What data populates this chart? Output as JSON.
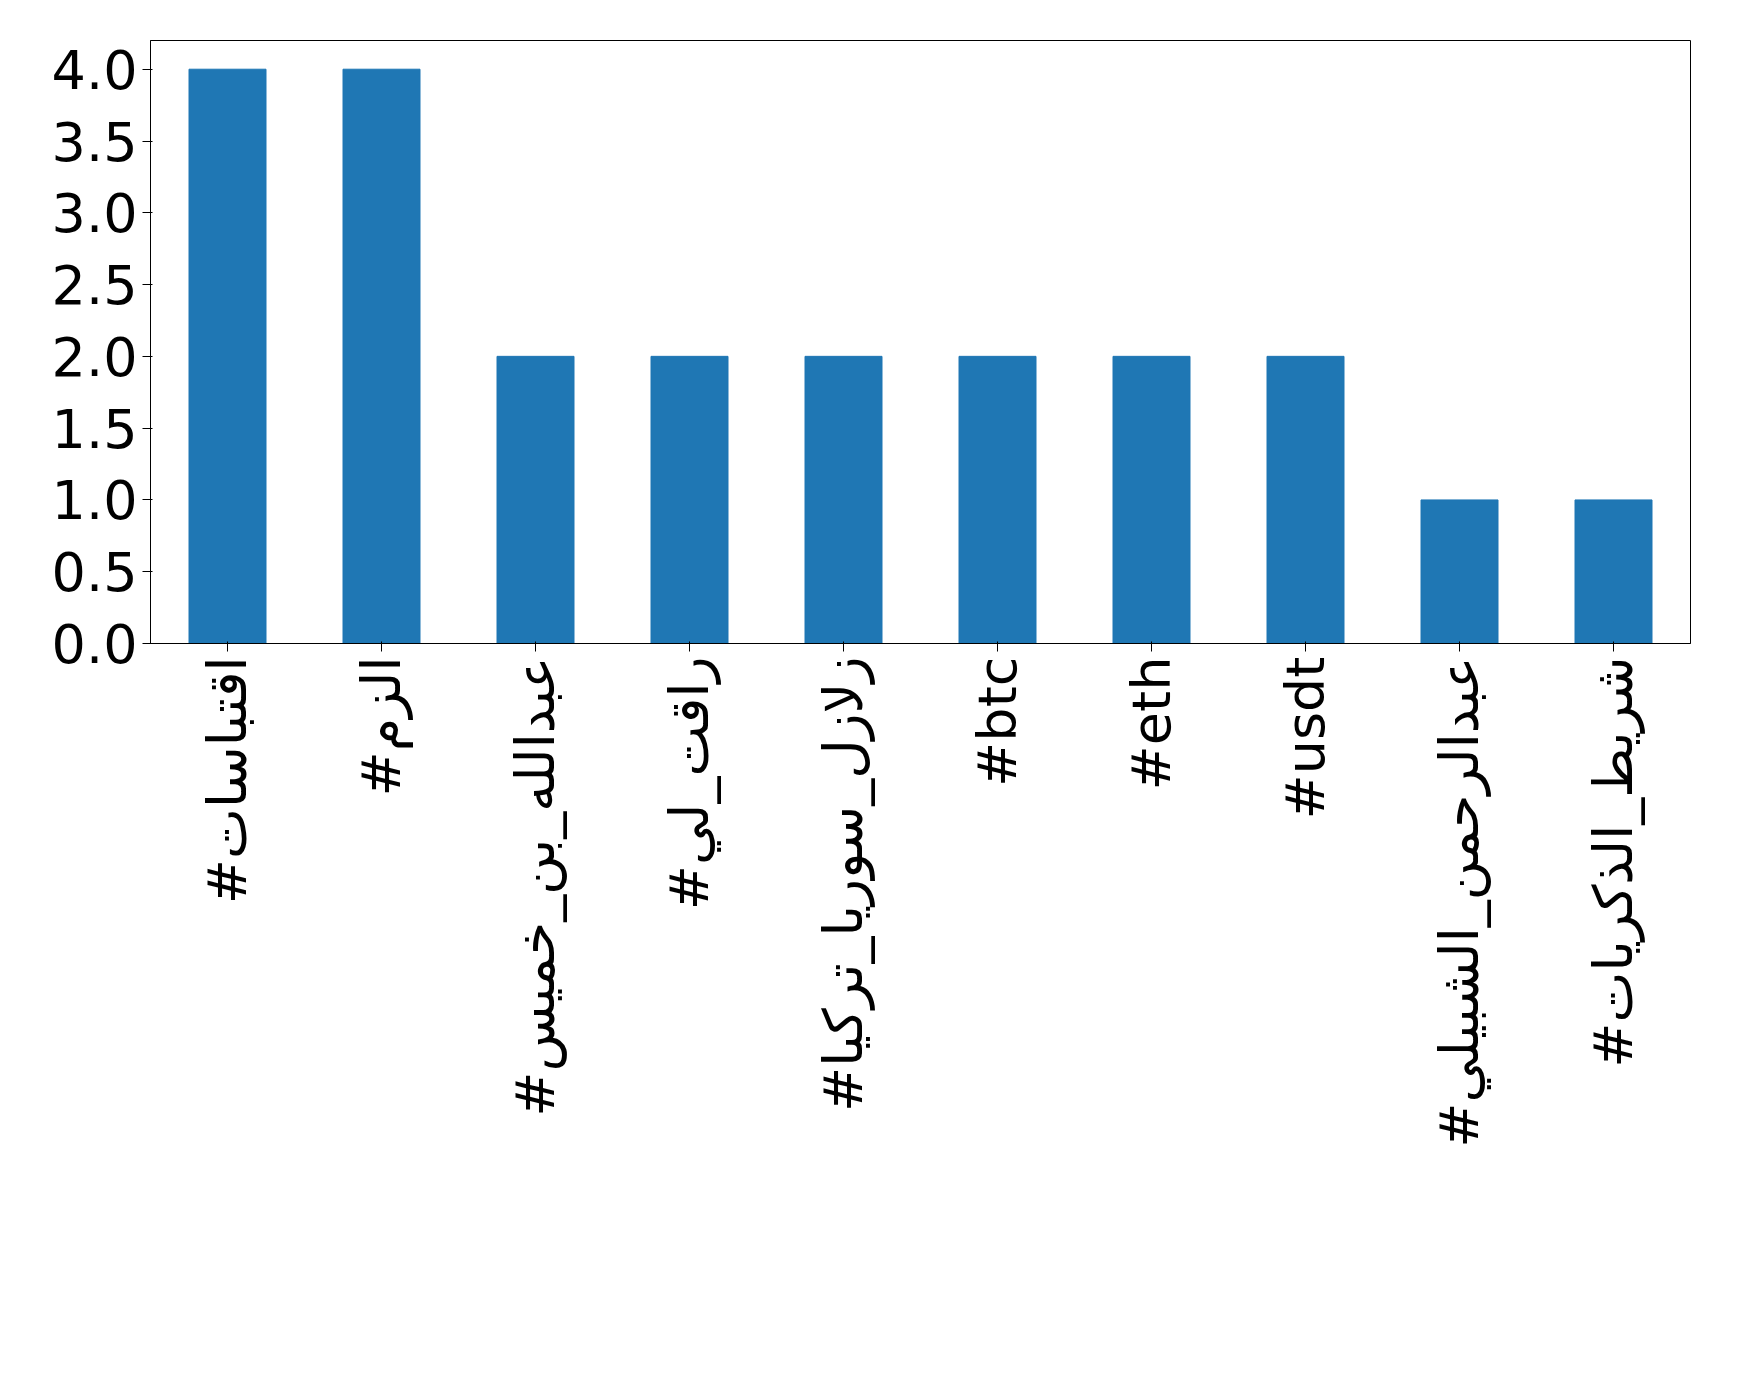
{
  "chart_data": {
    "type": "bar",
    "categories": [
      "#اقتباسات",
      "#الزم",
      "#عبدالله_بن_خميس",
      "#راقت_لي",
      "#زلازل_سوريا_تركيا",
      "#btc",
      "#eth",
      "#usdt",
      "#عبدالرحمن_الشبيلي",
      "#شريط_الذكريات"
    ],
    "values": [
      4,
      4,
      2,
      2,
      2,
      2,
      2,
      2,
      1,
      1
    ],
    "color": "#1f77b4",
    "ylim": [
      0,
      4.2
    ],
    "yticks": [
      {
        "value": 0,
        "label": "0.0"
      },
      {
        "value": 0.5,
        "label": "0.5"
      },
      {
        "value": 1,
        "label": "1.0"
      },
      {
        "value": 1.5,
        "label": "1.5"
      },
      {
        "value": 2,
        "label": "2.0"
      },
      {
        "value": 2.5,
        "label": "2.5"
      },
      {
        "value": 3,
        "label": "3.0"
      },
      {
        "value": 3.5,
        "label": "3.5"
      },
      {
        "value": 4,
        "label": "4.0"
      }
    ],
    "grid": false
  }
}
